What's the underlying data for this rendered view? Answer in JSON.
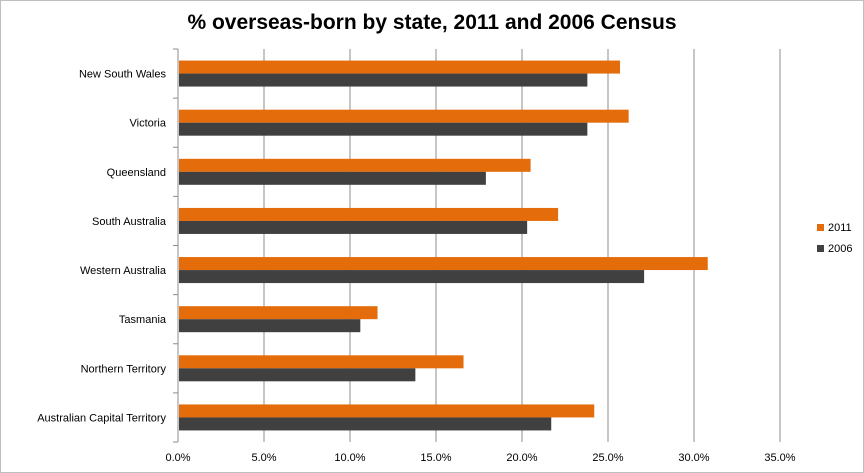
{
  "chart_data": {
    "type": "bar",
    "orientation": "horizontal",
    "title": "% overseas-born by state, 2011 and 2006 Census",
    "xlabel": "",
    "ylabel": "",
    "categories": [
      "New South Wales",
      "Victoria",
      "Queensland",
      "South Australia",
      "Western Australia",
      "Tasmania",
      "Northern Territory",
      "Australian Capital Territory"
    ],
    "series": [
      {
        "name": "2011",
        "color": "#E46C0A",
        "values": [
          0.257,
          0.262,
          0.205,
          0.221,
          0.308,
          0.116,
          0.166,
          0.242
        ]
      },
      {
        "name": "2006",
        "color": "#404040",
        "values": [
          0.238,
          0.238,
          0.179,
          0.203,
          0.271,
          0.106,
          0.138,
          0.217
        ]
      }
    ],
    "xlim": [
      0,
      0.35
    ],
    "xticks": [
      "0.0%",
      "5.0%",
      "10.0%",
      "15.0%",
      "20.0%",
      "25.0%",
      "30.0%",
      "35.0%"
    ],
    "grid": true,
    "legend_position": "right"
  }
}
